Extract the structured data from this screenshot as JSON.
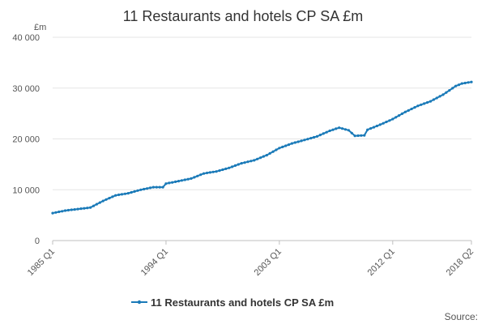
{
  "chart_data": {
    "type": "line",
    "title": "11 Restaurants and hotels CP SA £m",
    "y_unit_label": "£m",
    "ylim": [
      0,
      40000
    ],
    "y_ticks": [
      0,
      10000,
      20000,
      30000,
      40000
    ],
    "y_tick_labels": [
      "0",
      "10 000",
      "20 000",
      "30 000",
      "40 000"
    ],
    "x_range": [
      1985.0,
      2018.25
    ],
    "x_ticks": [
      1985.0,
      1994.0,
      2003.0,
      2012.0,
      2018.25
    ],
    "x_tick_labels": [
      "1985 Q1",
      "1994 Q1",
      "2003 Q1",
      "2012 Q1",
      "2018 Q2"
    ],
    "grid": true,
    "legend_position": "bottom",
    "source_label": "Source:",
    "series": [
      {
        "name": "11 Restaurants and hotels CP SA £m",
        "color": "#1a7ab8",
        "anchor_points": [
          [
            1985.0,
            5400
          ],
          [
            1986.0,
            5900
          ],
          [
            1987.0,
            6200
          ],
          [
            1988.0,
            6500
          ],
          [
            1989.0,
            7800
          ],
          [
            1990.0,
            8900
          ],
          [
            1991.0,
            9300
          ],
          [
            1992.0,
            10000
          ],
          [
            1993.0,
            10500
          ],
          [
            1993.75,
            10500
          ],
          [
            1994.0,
            11200
          ],
          [
            1995.0,
            11700
          ],
          [
            1996.0,
            12200
          ],
          [
            1997.0,
            13200
          ],
          [
            1998.0,
            13600
          ],
          [
            1999.0,
            14300
          ],
          [
            2000.0,
            15200
          ],
          [
            2001.0,
            15800
          ],
          [
            2002.0,
            16800
          ],
          [
            2003.0,
            18200
          ],
          [
            2004.0,
            19100
          ],
          [
            2005.0,
            19800
          ],
          [
            2006.0,
            20500
          ],
          [
            2007.0,
            21600
          ],
          [
            2007.75,
            22200
          ],
          [
            2008.5,
            21700
          ],
          [
            2009.0,
            20600
          ],
          [
            2009.75,
            20700
          ],
          [
            2010.0,
            21800
          ],
          [
            2011.0,
            22800
          ],
          [
            2012.0,
            23900
          ],
          [
            2013.0,
            25300
          ],
          [
            2014.0,
            26500
          ],
          [
            2015.0,
            27400
          ],
          [
            2016.0,
            28700
          ],
          [
            2017.0,
            30400
          ],
          [
            2017.5,
            30900
          ],
          [
            2018.25,
            31200
          ]
        ]
      }
    ]
  }
}
